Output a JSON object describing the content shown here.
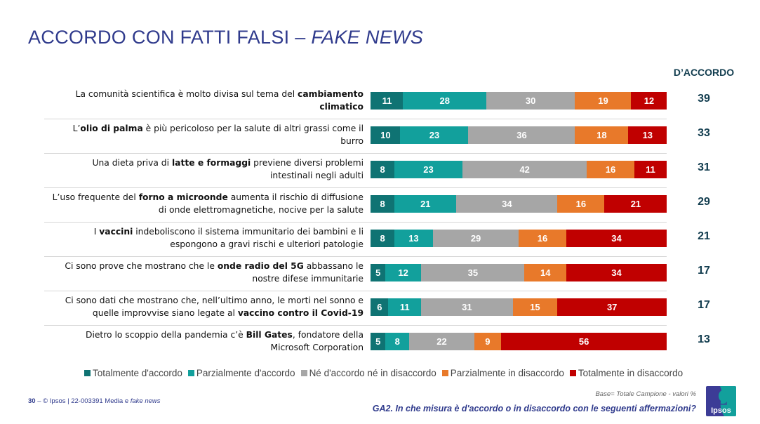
{
  "title": {
    "main": "ACCORDO CON FATTI FALSI – ",
    "italic": "FAKE NEWS"
  },
  "agree_header": "D’ACCORDO",
  "colors": {
    "totally_agree": "#0f7373",
    "partially_agree": "#12a09c",
    "neutral": "#a6a6a6",
    "partially_disagree": "#e8792a",
    "totally_disagree": "#c00000",
    "title": "#2f3a8c",
    "agree_total": "#123d4f"
  },
  "rows": [
    {
      "label_parts": [
        {
          "t": "La comunità scientifica è molto divisa sul tema del "
        },
        {
          "t": "cambiamento",
          "b": true
        },
        {
          "br": true
        },
        {
          "t": "climatico",
          "b": true
        }
      ],
      "agree": "39"
    },
    {
      "label_parts": [
        {
          "t": "L’"
        },
        {
          "t": "olio di palma",
          "b": true
        },
        {
          "t": " è più pericoloso per la salute di altri grassi come il"
        },
        {
          "br": true
        },
        {
          "t": "burro"
        }
      ],
      "agree": "33"
    },
    {
      "label_parts": [
        {
          "t": "Una dieta priva di "
        },
        {
          "t": "latte e formaggi",
          "b": true
        },
        {
          "t": " previene diversi problemi"
        },
        {
          "br": true
        },
        {
          "t": "intestinali negli adulti"
        }
      ],
      "agree": "31"
    },
    {
      "label_parts": [
        {
          "t": "L’uso frequente del "
        },
        {
          "t": "forno a microonde",
          "b": true
        },
        {
          "t": " aumenta il rischio di diffusione"
        },
        {
          "br": true
        },
        {
          "t": "di onde elettromagnetiche, nocive per la salute"
        }
      ],
      "agree": "29"
    },
    {
      "label_parts": [
        {
          "t": "I "
        },
        {
          "t": "vaccini",
          "b": true
        },
        {
          "t": " indeboliscono il sistema immunitario dei bambini e li"
        },
        {
          "br": true
        },
        {
          "t": "espongono a gravi rischi e ulteriori patologie"
        }
      ],
      "agree": "21"
    },
    {
      "label_parts": [
        {
          "t": "Ci sono prove che mostrano che le "
        },
        {
          "t": "onde radio del 5G",
          "b": true
        },
        {
          "t": " abbassano le"
        },
        {
          "br": true
        },
        {
          "t": "nostre difese immunitarie"
        }
      ],
      "agree": "17"
    },
    {
      "label_parts": [
        {
          "t": "Ci sono dati che mostrano che, nell’ultimo anno, le morti nel sonno e"
        },
        {
          "br": true
        },
        {
          "t": "quelle improvvise siano legate al "
        },
        {
          "t": "vaccino contro il Covid-19",
          "b": true
        }
      ],
      "agree": "17"
    },
    {
      "label_parts": [
        {
          "t": "Dietro lo scoppio della pandemia c’è "
        },
        {
          "t": "Bill Gates",
          "b": true
        },
        {
          "t": ", fondatore della"
        },
        {
          "br": true
        },
        {
          "t": "Microsoft Corporation"
        }
      ],
      "agree": "13"
    }
  ],
  "chart_data": {
    "type": "bar",
    "orientation": "horizontal-stacked-100",
    "title": "ACCORDO CON FATTI FALSI – FAKE NEWS",
    "categories": [
      "La comunità scientifica è molto divisa sul tema del cambiamento climatico",
      "L’olio di palma è più pericoloso per la salute di altri grassi come il burro",
      "Una dieta priva di latte e formaggi previene diversi problemi intestinali negli adulti",
      "L’uso frequente del forno a microonde aumenta il rischio di diffusione di onde elettromagnetiche, nocive per la salute",
      "I vaccini indeboliscono il sistema immunitario dei bambini e li espongono a gravi rischi e ulteriori patologie",
      "Ci sono prove che mostrano che le onde radio del 5G abbassano le nostre difese immunitarie",
      "Ci sono dati che mostrano che, nell’ultimo anno, le morti nel sonno e quelle improvvise siano legate al vaccino contro il Covid-19",
      "Dietro lo scoppio della pandemia c’è Bill Gates, fondatore della Microsoft Corporation"
    ],
    "series": [
      {
        "name": "Totalmente d'accordo",
        "color": "#0f7373",
        "values": [
          11,
          10,
          8,
          8,
          8,
          5,
          6,
          5
        ]
      },
      {
        "name": "Parzialmente d'accordo",
        "color": "#12a09c",
        "values": [
          28,
          23,
          23,
          21,
          13,
          12,
          11,
          8
        ]
      },
      {
        "name": "Né d'accordo né in disaccordo",
        "color": "#a6a6a6",
        "values": [
          30,
          36,
          42,
          34,
          29,
          35,
          31,
          22
        ]
      },
      {
        "name": "Parzialmente in disaccordo",
        "color": "#e8792a",
        "values": [
          19,
          18,
          16,
          16,
          16,
          14,
          15,
          9
        ]
      },
      {
        "name": "Totalmente in disaccordo",
        "color": "#c00000",
        "values": [
          12,
          13,
          11,
          21,
          34,
          34,
          37,
          56
        ]
      }
    ],
    "agree_totals": [
      39,
      33,
      31,
      29,
      21,
      17,
      17,
      13
    ],
    "xlim": [
      0,
      100
    ],
    "legend_position": "bottom",
    "grid": false
  },
  "legend": [
    "Totalmente d'accordo",
    "Parzialmente d'accordo",
    "Né d'accordo né in disaccordo",
    "Parzialmente in disaccordo",
    "Totalmente in disaccordo"
  ],
  "footer": {
    "page_number": "30",
    "dash": " – ",
    "copyright": "© Ipsos | 22-003391 Media e ",
    "copyright_italic": "fake news",
    "base_note": "Base= Totale Campione - valori %",
    "question": "GA2. In che misura è d'accordo o in disaccordo con le seguenti affermazioni?",
    "logo_text": "Ipsos"
  }
}
